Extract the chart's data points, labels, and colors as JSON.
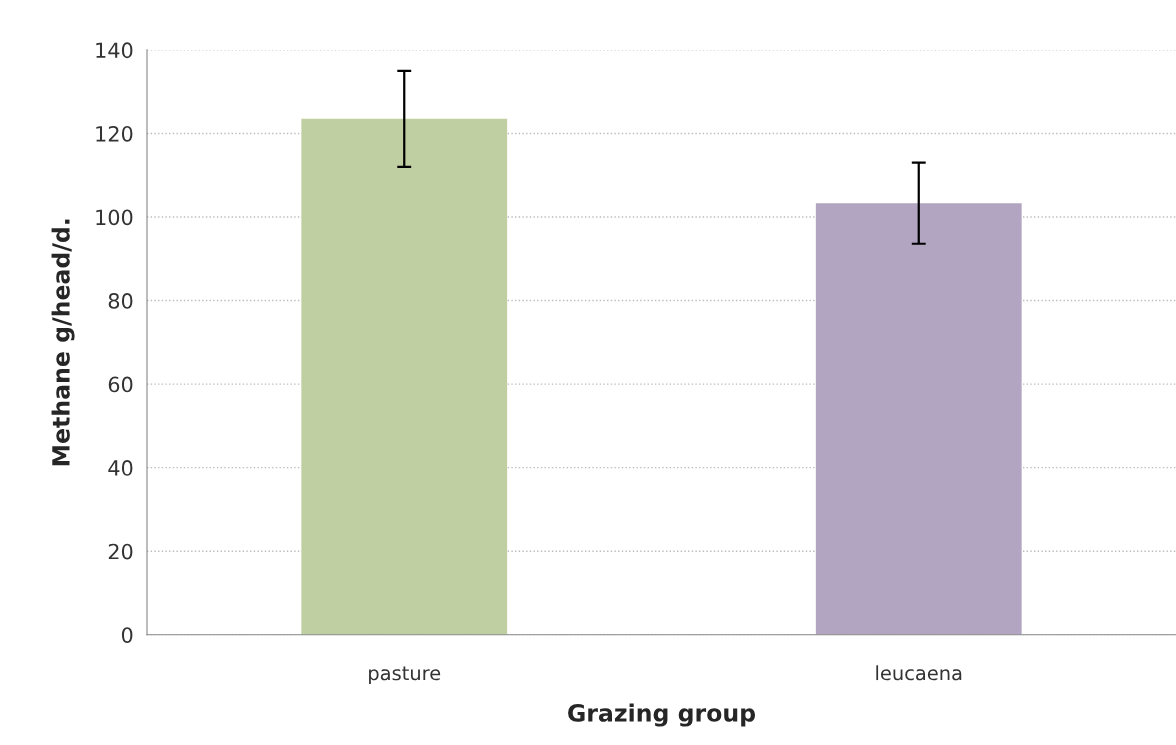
{
  "chart_data": {
    "type": "bar",
    "xlabel": "Grazing group",
    "ylabel": "Methane g/head/d.",
    "categories": [
      "pasture",
      "leucaena"
    ],
    "values": [
      123.5,
      103.3
    ],
    "colors": [
      "#c3d69b",
      "#b1a0c7"
    ],
    "errors": [
      11.5,
      9.7
    ],
    "ylim": [
      0,
      140
    ],
    "yticks": [
      0,
      20,
      40,
      60,
      80,
      100,
      120,
      140
    ],
    "grid": "y"
  }
}
